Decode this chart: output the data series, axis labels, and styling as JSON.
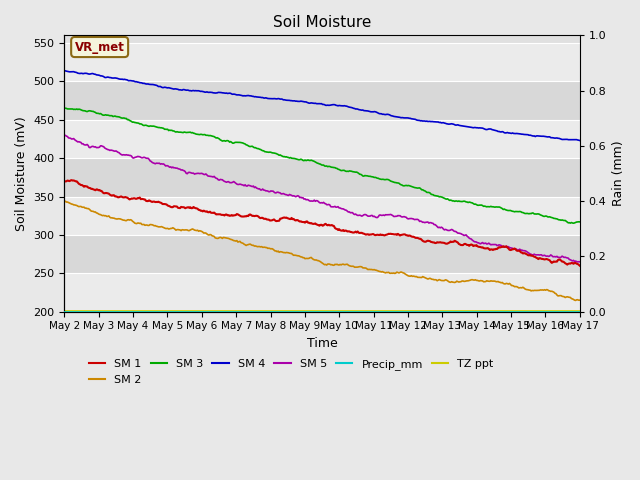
{
  "title": "Soil Moisture",
  "xlabel": "Time",
  "ylabel_left": "Soil Moisture (mV)",
  "ylabel_right": "Rain (mm)",
  "ylim_left": [
    200,
    560
  ],
  "ylim_right": [
    0.0,
    1.0
  ],
  "yticks_left": [
    200,
    250,
    300,
    350,
    400,
    450,
    500,
    550
  ],
  "yticks_right": [
    0.0,
    0.2,
    0.4,
    0.6,
    0.8,
    1.0
  ],
  "xlim": [
    0,
    15
  ],
  "xtick_labels": [
    "May 2",
    "May 3",
    "May 4",
    "May 5",
    "May 6",
    "May 7",
    "May 8",
    "May 9",
    "May 10",
    "May 11",
    "May 12",
    "May 13",
    "May 14",
    "May 15",
    "May 16",
    "May 17"
  ],
  "fig_bg": "#e8e8e8",
  "plot_bg": "#e0e0e0",
  "stripe_light": "#ebebeb",
  "stripe_dark": "#d8d8d8",
  "annotation_text": "VR_met",
  "annotation_color": "#8b0000",
  "annotation_bg": "#f5f5dc",
  "annotation_border": "#8b6914",
  "sm1_color": "#cc0000",
  "sm2_color": "#cc8800",
  "sm3_color": "#00aa00",
  "sm4_color": "#0000cc",
  "sm5_color": "#aa00aa",
  "precip_color": "#00cccc",
  "tzppt_color": "#cccc00",
  "legend_colors": [
    "#cc0000",
    "#cc8800",
    "#00aa00",
    "#0000cc",
    "#aa00aa",
    "#00cccc",
    "#cccc00"
  ],
  "legend_labels": [
    "SM 1",
    "SM 2",
    "SM 3",
    "SM 4",
    "SM 5",
    "Precip_mm",
    "TZ ppt"
  ]
}
